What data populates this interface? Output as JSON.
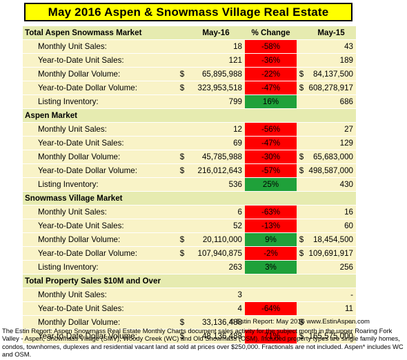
{
  "title": "May 2016 Aspen & Snowmass Village Real Estate",
  "columns": {
    "current": "May-16",
    "change": "% Change",
    "prior": "May-15"
  },
  "sections": [
    {
      "label": "Total Aspen Snowmass Market",
      "rows": [
        {
          "label": "Monthly Unit Sales:",
          "cur_dollar": "",
          "cur": "18",
          "pct": "-58%",
          "pct_color": "red",
          "prior_dollar": "",
          "prior": "43"
        },
        {
          "label": "Year-to-Date Unit Sales:",
          "cur_dollar": "",
          "cur": "121",
          "pct": "-36%",
          "pct_color": "red",
          "prior_dollar": "",
          "prior": "189"
        },
        {
          "label": "Monthly Dollar Volume:",
          "cur_dollar": "$",
          "cur": "65,895,988",
          "pct": "-22%",
          "pct_color": "red",
          "prior_dollar": "$",
          "prior": "84,137,500"
        },
        {
          "label": "Year-to-Date Dollar Volume:",
          "cur_dollar": "$",
          "cur": "323,953,518",
          "pct": "-47%",
          "pct_color": "red",
          "prior_dollar": "$",
          "prior": "608,278,917"
        },
        {
          "label": "Listing Inventory:",
          "cur_dollar": "",
          "cur": "799",
          "pct": "16%",
          "pct_color": "green",
          "prior_dollar": "",
          "prior": "686"
        }
      ]
    },
    {
      "label": "Aspen Market",
      "rows": [
        {
          "label": "Monthly Unit Sales:",
          "cur_dollar": "",
          "cur": "12",
          "pct": "-56%",
          "pct_color": "red",
          "prior_dollar": "",
          "prior": "27"
        },
        {
          "label": "Year-to-Date Unit Sales:",
          "cur_dollar": "",
          "cur": "69",
          "pct": "-47%",
          "pct_color": "red",
          "prior_dollar": "",
          "prior": "129"
        },
        {
          "label": "Monthly Dollar Volume:",
          "cur_dollar": "$",
          "cur": "45,785,988",
          "pct": "-30%",
          "pct_color": "red",
          "prior_dollar": "$",
          "prior": "65,683,000"
        },
        {
          "label": "Year-to-Date Dollar Volume:",
          "cur_dollar": "$",
          "cur": "216,012,643",
          "pct": "-57%",
          "pct_color": "red",
          "prior_dollar": "$",
          "prior": "498,587,000"
        },
        {
          "label": "Listing Inventory:",
          "cur_dollar": "",
          "cur": "536",
          "pct": "25%",
          "pct_color": "green",
          "prior_dollar": "",
          "prior": "430"
        }
      ]
    },
    {
      "label": "Snowmass Village Market",
      "rows": [
        {
          "label": "Monthly Unit Sales:",
          "cur_dollar": "",
          "cur": "6",
          "pct": "-63%",
          "pct_color": "red",
          "prior_dollar": "",
          "prior": "16"
        },
        {
          "label": "Year-to-Date Unit Sales:",
          "cur_dollar": "",
          "cur": "52",
          "pct": "-13%",
          "pct_color": "red",
          "prior_dollar": "",
          "prior": "60"
        },
        {
          "label": "Monthly Dollar Volume:",
          "cur_dollar": "$",
          "cur": "20,110,000",
          "pct": "9%",
          "pct_color": "green",
          "prior_dollar": "$",
          "prior": "18,454,500"
        },
        {
          "label": "Year-to-Date Dollar Volume:",
          "cur_dollar": "$",
          "cur": "107,940,875",
          "pct": "-2%",
          "pct_color": "red",
          "prior_dollar": "$",
          "prior": "109,691,917"
        },
        {
          "label": "Listing Inventory:",
          "cur_dollar": "",
          "cur": "263",
          "pct": "3%",
          "pct_color": "green",
          "prior_dollar": "",
          "prior": "256"
        }
      ]
    },
    {
      "label": "Total Property Sales $10M and Over",
      "rows": [
        {
          "label": "Monthly Unit Sales:",
          "cur_dollar": "",
          "cur": "3",
          "pct": "",
          "pct_color": "none",
          "prior_dollar": "",
          "prior": "-"
        },
        {
          "label": "Year-to-Date Unit Sales:",
          "cur_dollar": "",
          "cur": "4",
          "pct": "-64%",
          "pct_color": "red",
          "prior_dollar": "",
          "prior": "11"
        },
        {
          "label": "Monthly Dollar Volume:",
          "cur_dollar": "$",
          "cur": "33,136,488",
          "pct": "",
          "pct_color": "none",
          "prior_dollar": "$",
          "prior": "-"
        },
        {
          "label": "Year-to-Date Dollar Volume:",
          "cur_dollar": "$",
          "cur": "48,136,488",
          "pct": "-71%",
          "pct_color": "red",
          "prior_dollar": "$",
          "prior": "165,575,000"
        }
      ]
    }
  ],
  "credit": "© Estin Report: May 2016 www.EstinAspen.com",
  "footnote": "The Estin Report: Aspen Snowmass Real Estate Monthly Charts document sales activity for the subject month in the upper Roaring Fork Valley - Aspen, Snowmass Village (SMV), Woody Creek (WC) and Old Snowmass (OSM). Included property types are single family homes, condos, townhomes, duplexes and residential vacant land at sold at prices over $250,000.  Fractionals are not included.  Aspen* includes WC and OSM.",
  "colors": {
    "title_bg": "#ffff00",
    "section_bg": "#e6ebb0",
    "row_bg": "#f9f3c7",
    "negative": "#ff0000",
    "positive": "#1fa13a"
  }
}
